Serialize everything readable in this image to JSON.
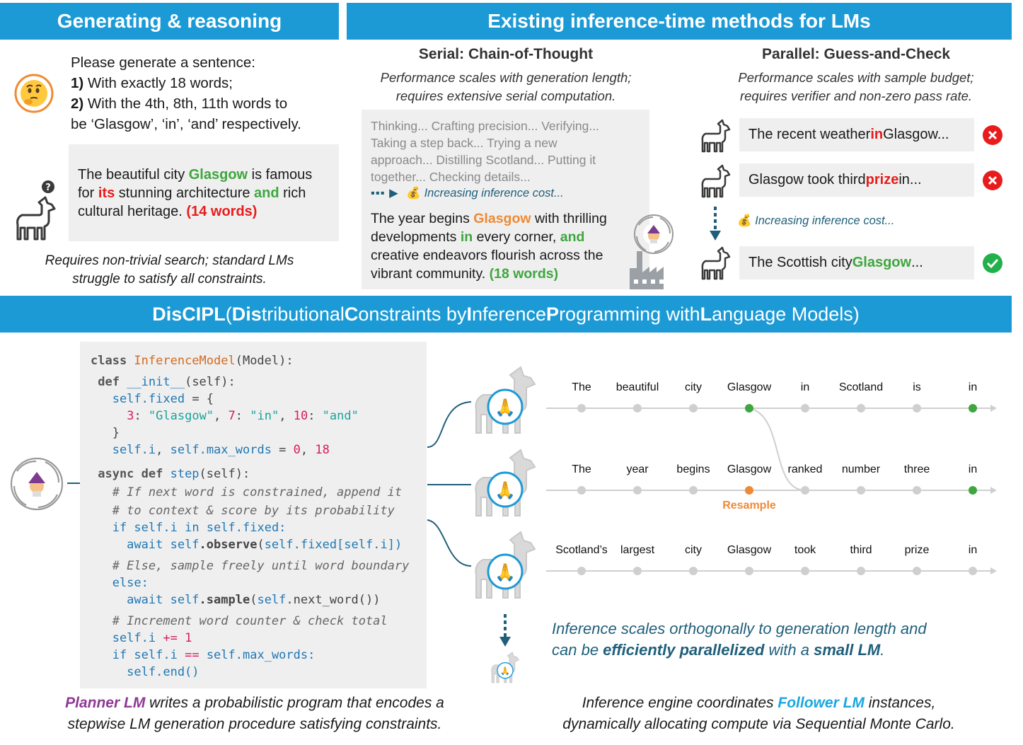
{
  "left_panel": {
    "banner": "Generating & reasoning",
    "prompt_line1": "Please generate a sentence:",
    "prompt_line2_num": "1)",
    "prompt_line2_text": " With exactly 18 words;",
    "prompt_line3_num": "2)",
    "prompt_line3_text": " With the 4th, 8th, 11th words to",
    "prompt_line4": "be ‘Glasgow’, ‘in’, ‘and’ respectively.",
    "answer": {
      "l1a": "The beautiful city ",
      "l1b": "Glasgow",
      "l1c": " is famous",
      "l2a": "for ",
      "l2b": "its",
      "l2c": " stunning architecture ",
      "l2d": "and",
      "l2e": " rich",
      "l3a": "cultural heritage. ",
      "l3b": "(14 words)"
    },
    "caption_l1": "Requires non-trivial search; standard LMs",
    "caption_l2": "struggle to satisfy all constraints."
  },
  "right_panel": {
    "banner": "Existing inference-time methods for LMs",
    "serial": {
      "title": "Serial: Chain-of-Thought",
      "sub1": "Performance scales with generation length;",
      "sub2": "requires extensive serial computation.",
      "thinking1": "Thinking... Crafting precision... Verifying...",
      "thinking2": "Taking a step back... Trying a new",
      "thinking3": "approach... Distilling Scotland... Putting it",
      "thinking4": "together... Checking details...",
      "cost": "Increasing inference cost...",
      "ans": {
        "l1a": "The year begins ",
        "l1b": "Glasgow",
        "l1c": " with thrilling",
        "l2a": "developments ",
        "l2b": "in",
        "l2c": " every corner, ",
        "l2d": "and",
        "l3": "creative endeavors flourish across the",
        "l4a": "vibrant community. ",
        "l4b": "(18 words)"
      }
    },
    "parallel": {
      "title": "Parallel: Guess-and-Check",
      "sub1": "Performance scales with sample budget;",
      "sub2": "requires verifier and non-zero pass rate.",
      "row1a": "The recent weather ",
      "row1b": "in",
      "row1c": " Glasgow...",
      "row2a": "Glasgow took third ",
      "row2b": "prize",
      "row2c": " in...",
      "cost": "Increasing inference cost...",
      "row3a": "The Scottish city ",
      "row3b": "Glasgow",
      "row3c": "..."
    }
  },
  "bottom": {
    "banner_parts": [
      "Dis",
      "CIPL",
      " (",
      "Dis",
      "tributional ",
      "C",
      "onstraints by ",
      "I",
      "nference ",
      "P",
      "rogramming with ",
      "L",
      "anguage Models)"
    ],
    "code": {
      "c1a": "class ",
      "c1b": "InferenceModel",
      "c1c": "(Model):",
      "c2a": " def ",
      "c2b": "__init__",
      "c2c": "(self):",
      "c3a": "   self",
      "c3b": ".fixed",
      "c3c": " = {",
      "c4a": "     ",
      "c4b": "3",
      "c4c": ": ",
      "c4d": "\"Glasgow\"",
      "c4e": ", ",
      "c4f": "7",
      "c4g": ": ",
      "c4h": "\"in\"",
      "c4i": ", ",
      "c4j": "10",
      "c4k": ": ",
      "c4l": "\"and\"",
      "c5": "   }",
      "c6a": "   self",
      "c6b": ".i",
      "c6c": ", ",
      "c6d": "self",
      "c6e": ".max_words",
      "c6f": " = ",
      "c6g": "0",
      "c6h": ", ",
      "c6i": "18",
      "c7a": " async def ",
      "c7b": "step",
      "c7c": "(self):",
      "c8": "   # If next word is constrained, append it",
      "c9": "   # to context & score by its probability",
      "c10a": "   if ",
      "c10b": "self",
      "c10c": ".i ",
      "c10d": "in ",
      "c10e": "self",
      "c10f": ".fixed:",
      "c11a": "     await ",
      "c11b": "self",
      "c11c": ".observe",
      "c11d": "(",
      "c11e": "self",
      "c11f": ".fixed[",
      "c11g": "self",
      "c11h": ".i])",
      "c12": "   # Else, sample freely until word boundary",
      "c13": "   else:",
      "c14a": "     await ",
      "c14b": "self",
      "c14c": ".sample",
      "c14d": "(",
      "c14e": "self",
      "c14f": ".next_word())",
      "c15": "   # Increment word counter & check total",
      "c16a": "   self",
      "c16b": ".i ",
      "c16c": "+= ",
      "c16d": "1",
      "c17a": "   if ",
      "c17b": "self",
      "c17c": ".i ",
      "c17d": "== ",
      "c17e": "self",
      "c17f": ".max_words:",
      "c18": "     self.end()"
    },
    "rows": [
      [
        "The",
        "beautiful",
        "city",
        "Glasgow",
        "in",
        "Scotland",
        "is",
        "in"
      ],
      [
        "The",
        "year",
        "begins",
        "Glasgow",
        "ranked",
        "number",
        "three",
        "in"
      ],
      [
        "Scotland’s",
        "largest",
        "city",
        "Glasgow",
        "took",
        "third",
        "prize",
        "in"
      ]
    ],
    "resample": "Resample",
    "scale_l1": "Inference scales orthogonally to generation length and",
    "scale_l2a": "can be ",
    "scale_l2b": "efficiently parallelized",
    "scale_l2c": " with a ",
    "scale_l2d": "small LM",
    "scale_l2e": ".",
    "planner_l1a": "Planner LM",
    "planner_l1b": " writes a probabilistic program that encodes a",
    "planner_l2": "stepwise LM generation procedure satisfying constraints.",
    "follower_l1a": "Inference engine coordinates ",
    "follower_l1b": "Follower LM",
    "follower_l1c": " instances,",
    "follower_l2": "dynamically allocating compute via Sequential Monte Carlo."
  },
  "colors": {
    "banner": "#1c9ad6",
    "green": "#3ea63e",
    "red": "#e81c1c",
    "orange": "#ee8a36",
    "purple": "#8e3a94",
    "teal_text": "#1f5f7a"
  },
  "icons": [
    "thinking-face-icon",
    "llama-icon",
    "question-mark-icon",
    "wizard-vortex-icon",
    "factory-icon",
    "cross-mark-icon",
    "check-mark-icon",
    "money-bag-icon",
    "praying-hands-icon"
  ]
}
